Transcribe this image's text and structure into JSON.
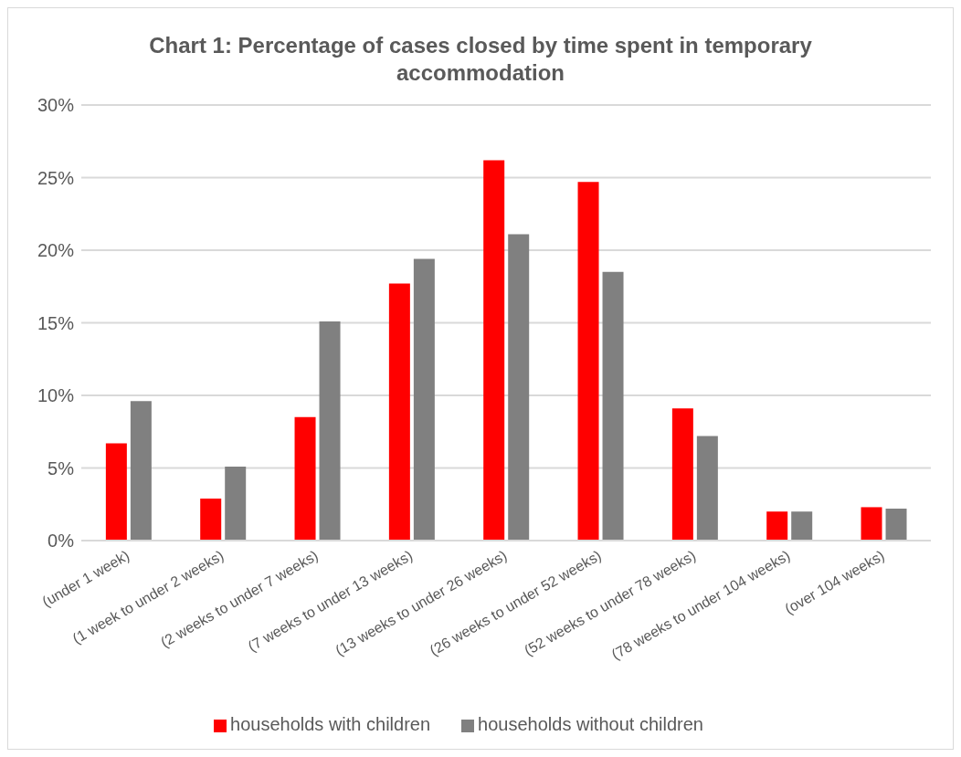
{
  "chart_data": {
    "type": "bar",
    "title": "Chart 1: Percentage of cases closed by time spent in temporary accommodation",
    "categories": [
      "(under 1 week)",
      "(1 week to under 2 weeks)",
      "(2 weeks to under 7 weeks)",
      "(7 weeks to under 13 weeks)",
      "(13 weeks to under 26 weeks)",
      "(26 weeks to under 52 weeks)",
      "(52 weeks to under 78 weeks)",
      "(78 weeks to under 104 weeks)",
      "(over 104 weeks)"
    ],
    "series": [
      {
        "name": "households with children",
        "color": "#ff0000",
        "values": [
          6.7,
          2.9,
          8.5,
          17.7,
          26.2,
          24.7,
          9.1,
          2.0,
          2.3
        ]
      },
      {
        "name": "households without children",
        "color": "#808080",
        "values": [
          9.6,
          5.1,
          15.1,
          19.4,
          21.1,
          18.5,
          7.2,
          2.0,
          2.2
        ]
      }
    ],
    "ylim": [
      0,
      30
    ],
    "yticks": [
      {
        "value": 0,
        "label": "0%"
      },
      {
        "value": 5,
        "label": "5%"
      },
      {
        "value": 10,
        "label": "10%"
      },
      {
        "value": 15,
        "label": "15%"
      },
      {
        "value": 20,
        "label": "20%"
      },
      {
        "value": 25,
        "label": "25%"
      },
      {
        "value": 30,
        "label": "30%"
      }
    ],
    "grid": "y",
    "legend": "bottom"
  }
}
